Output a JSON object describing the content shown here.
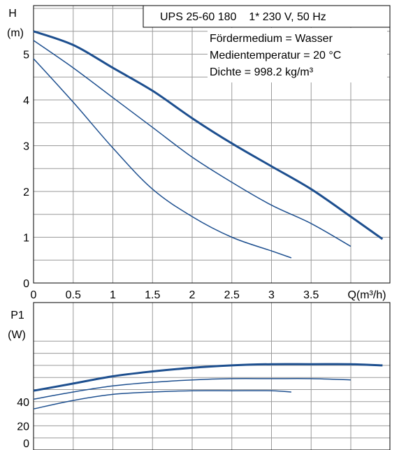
{
  "chart_data": [
    {
      "type": "line",
      "title": "UPS 25-60 180    1* 230 V, 50 Hz",
      "annotations": [
        "Fördermedium = Wasser",
        "Medientemperatur = 20 °C",
        "Dichte = 998.2 kg/m³"
      ],
      "ylabel_line1": "H",
      "ylabel_line2": "(m)",
      "xlabel": "Q(m³/h)",
      "xlim": [
        0,
        4.5
      ],
      "ylim": [
        0,
        6.1
      ],
      "x_ticks": [
        "0",
        "0.5",
        "1",
        "1.5",
        "2",
        "2.5",
        "3",
        "3.5"
      ],
      "y_ticks": [
        "0",
        "1",
        "2",
        "3",
        "4",
        "5"
      ],
      "grid": true,
      "line_color": "#1d4f8f",
      "series": [
        {
          "name": "",
          "x": [
            0,
            0.5,
            1,
            1.5,
            2,
            2.5,
            3,
            3.5,
            4.0,
            4.4
          ],
          "y": [
            5.5,
            5.2,
            4.7,
            4.2,
            3.6,
            3.05,
            2.55,
            2.05,
            1.45,
            0.96
          ]
        },
        {
          "name": "",
          "x": [
            0,
            0.5,
            1,
            1.5,
            2,
            2.5,
            3,
            3.5,
            4.0
          ],
          "y": [
            5.3,
            4.7,
            4.05,
            3.4,
            2.75,
            2.2,
            1.7,
            1.3,
            0.8
          ]
        },
        {
          "name": "",
          "x": [
            0,
            0.5,
            1,
            1.5,
            2,
            2.5,
            3,
            3.25
          ],
          "y": [
            4.9,
            3.95,
            2.95,
            2.05,
            1.45,
            1.0,
            0.7,
            0.55
          ]
        }
      ]
    },
    {
      "type": "line",
      "ylabel_line1": "P1",
      "ylabel_line2": "(W)",
      "xlim": [
        0,
        4.5
      ],
      "ylim": [
        0,
        95
      ],
      "y_ticks": [
        "0",
        "20",
        "40"
      ],
      "grid": true,
      "line_color": "#1d4f8f",
      "series": [
        {
          "name": "",
          "x": [
            0,
            0.5,
            1,
            1.5,
            2,
            2.5,
            3,
            3.5,
            4.0,
            4.4
          ],
          "y": [
            49,
            55,
            61,
            65,
            68,
            70,
            71,
            71,
            71,
            70
          ]
        },
        {
          "name": "",
          "x": [
            0,
            0.5,
            1,
            1.5,
            2,
            2.5,
            3,
            3.5,
            4.0
          ],
          "y": [
            42,
            48,
            53,
            56,
            58,
            59,
            59,
            59,
            58
          ]
        },
        {
          "name": "",
          "x": [
            0,
            0.5,
            1,
            1.5,
            2,
            2.5,
            3,
            3.25
          ],
          "y": [
            34,
            41,
            46,
            48,
            49,
            49,
            49,
            48
          ]
        }
      ]
    }
  ]
}
